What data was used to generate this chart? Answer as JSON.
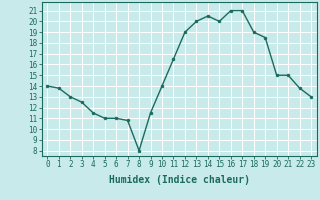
{
  "xlabel": "Humidex (Indice chaleur)",
  "x": [
    0,
    1,
    2,
    3,
    4,
    5,
    6,
    7,
    8,
    9,
    10,
    11,
    12,
    13,
    14,
    15,
    16,
    17,
    18,
    19,
    20,
    21,
    22,
    23
  ],
  "y": [
    14,
    13.8,
    13,
    12.5,
    11.5,
    11,
    11,
    10.8,
    8,
    11.5,
    14,
    16.5,
    19,
    20,
    20.5,
    20,
    21,
    21,
    19,
    18.5,
    15,
    15,
    13.8,
    13
  ],
  "line_color": "#1a6b5e",
  "marker_color": "#1a6b5e",
  "bg_color": "#c8eaea",
  "grid_color": "#b8d8d8",
  "ylim": [
    7.5,
    21.8
  ],
  "xlim": [
    -0.5,
    23.5
  ],
  "yticks": [
    8,
    9,
    10,
    11,
    12,
    13,
    14,
    15,
    16,
    17,
    18,
    19,
    20,
    21
  ],
  "xticks": [
    0,
    1,
    2,
    3,
    4,
    5,
    6,
    7,
    8,
    9,
    10,
    11,
    12,
    13,
    14,
    15,
    16,
    17,
    18,
    19,
    20,
    21,
    22,
    23
  ],
  "tick_label_color": "#1a6b5e",
  "axis_color": "#1a6b5e",
  "xlabel_fontsize": 7,
  "tick_fontsize": 5.5,
  "marker_size": 2,
  "line_width": 1.0
}
